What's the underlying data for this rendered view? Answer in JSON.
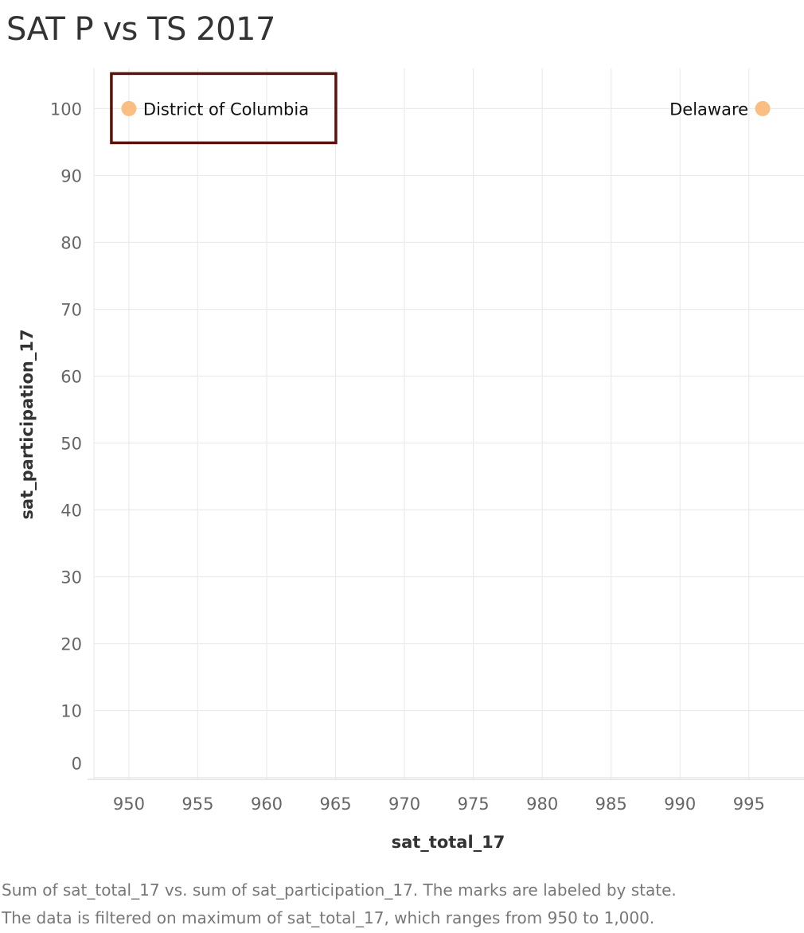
{
  "chart_data": {
    "type": "scatter",
    "title": "SAT P vs TS 2017",
    "xlabel": "sat_total_17",
    "ylabel": "sat_participation_17",
    "xlim": [
      947,
      999
    ],
    "ylim": [
      -1,
      106
    ],
    "xticks": [
      950,
      955,
      960,
      965,
      970,
      975,
      980,
      985,
      990,
      995
    ],
    "yticks": [
      0,
      10,
      20,
      30,
      40,
      50,
      60,
      70,
      80,
      90,
      100
    ],
    "grid": true,
    "points": [
      {
        "label": "District of Columbia",
        "x": 950,
        "y": 100,
        "highlighted": true
      },
      {
        "label": "Delaware",
        "x": 996,
        "y": 100,
        "highlighted": false
      }
    ],
    "mark_color": "#fbbe82",
    "highlight_color": "#5a130c"
  },
  "caption": {
    "line1": "Sum of sat_total_17 vs. sum of sat_participation_17.  The marks are labeled by state.",
    "line2": "The data is filtered on maximum of sat_total_17, which ranges from 950 to 1,000."
  }
}
